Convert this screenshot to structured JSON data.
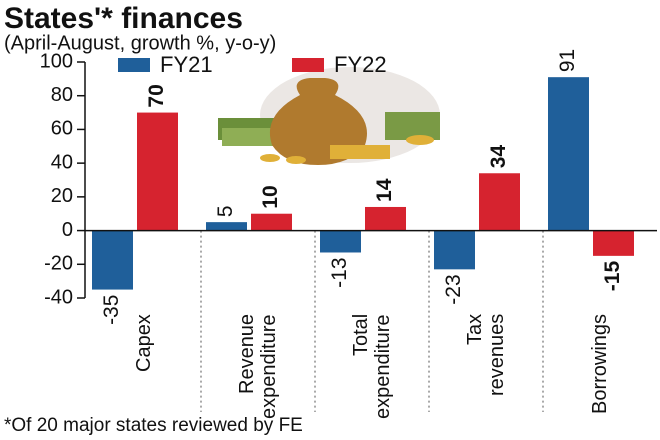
{
  "chart_data": {
    "type": "bar",
    "title": "States'* finances",
    "subtitle": "(April-August, growth %, y-o-y)",
    "footnote": "*Of 20 major states reviewed by FE",
    "categories": [
      "Capex",
      "Revenue expenditure",
      "Total expenditure",
      "Tax revenues",
      "Borrowings"
    ],
    "series": [
      {
        "name": "FY21",
        "color": "#1f5f9a",
        "values": [
          -35,
          5,
          -13,
          -23,
          91
        ]
      },
      {
        "name": "FY22",
        "color": "#d6232f",
        "values": [
          70,
          10,
          14,
          34,
          -15
        ]
      }
    ],
    "ylim": [
      -40,
      100
    ],
    "yticks": [
      -40,
      -20,
      0,
      20,
      40,
      60,
      80,
      100
    ]
  }
}
